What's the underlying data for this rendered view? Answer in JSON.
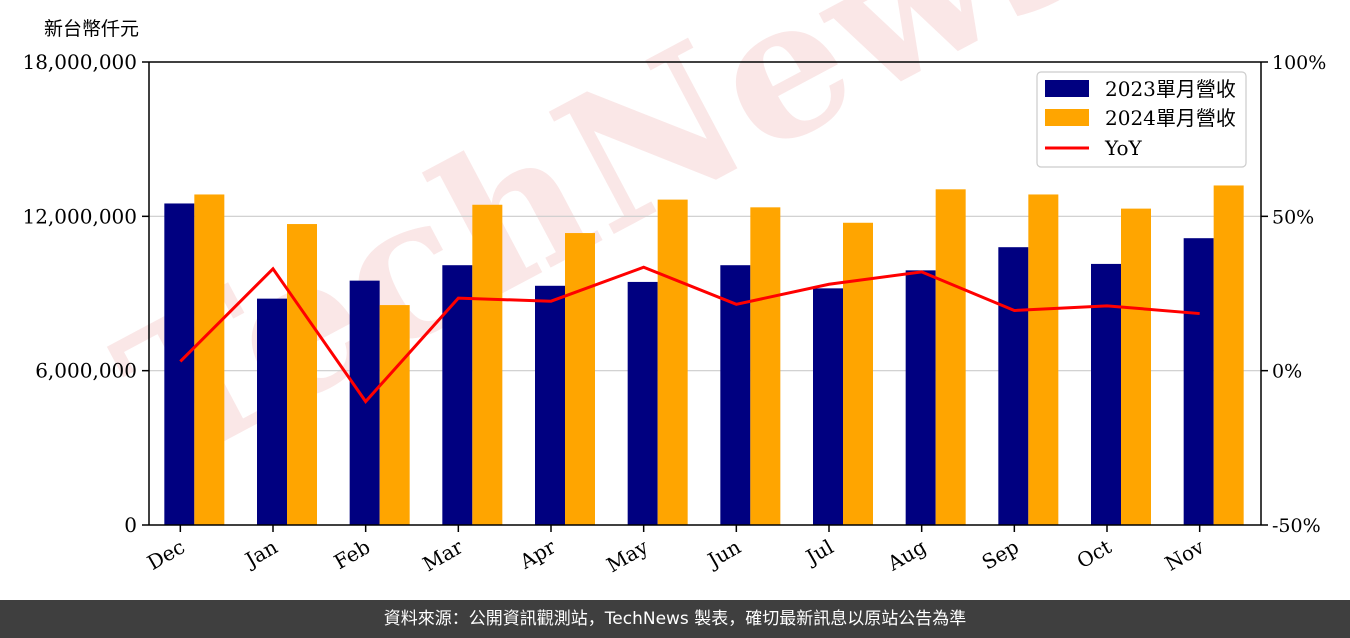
{
  "unit_label": "新台幣仟元",
  "footer_text": "資料來源：公開資訊觀測站，TechNews 製表，確切最新訊息以原站公告為準",
  "watermark": "TechNews",
  "colors": {
    "series_2023": "#000080",
    "series_2024": "#FFA500",
    "yoy": "#FF0000",
    "grid": "#cccccc",
    "footer_bg": "#3f3f3f"
  },
  "chart_data": {
    "type": "bar",
    "categories": [
      "Dec",
      "Jan",
      "Feb",
      "Mar",
      "Apr",
      "May",
      "Jun",
      "Jul",
      "Aug",
      "Sep",
      "Oct",
      "Nov"
    ],
    "series": [
      {
        "name": "2023單月營收",
        "axis": "left",
        "type": "bar",
        "values": [
          12500000,
          8800000,
          9500000,
          10100000,
          9300000,
          9450000,
          10100000,
          9200000,
          9900000,
          10800000,
          10150000,
          11150000
        ]
      },
      {
        "name": "2024單月營收",
        "axis": "left",
        "type": "bar",
        "values": [
          12850000,
          11700000,
          8550000,
          12450000,
          11350000,
          12650000,
          12350000,
          11750000,
          13050000,
          12850000,
          12300000,
          13200000
        ]
      },
      {
        "name": "YoY",
        "axis": "right",
        "type": "line",
        "unit": "%",
        "values": [
          3,
          33,
          -10,
          23.5,
          22.5,
          33.5,
          21.5,
          28,
          32,
          19.5,
          21,
          18.5
        ]
      }
    ],
    "left_axis": {
      "ylim": [
        0,
        18000000
      ],
      "ticks": [
        "0",
        "6,000,000",
        "12,000,000",
        "18,000,000"
      ]
    },
    "right_axis": {
      "ylim": [
        -50,
        100
      ],
      "ticks": [
        "-50%",
        "0%",
        "50%",
        "100%"
      ]
    },
    "grid": "horizontal",
    "legend_position": "top-right"
  }
}
